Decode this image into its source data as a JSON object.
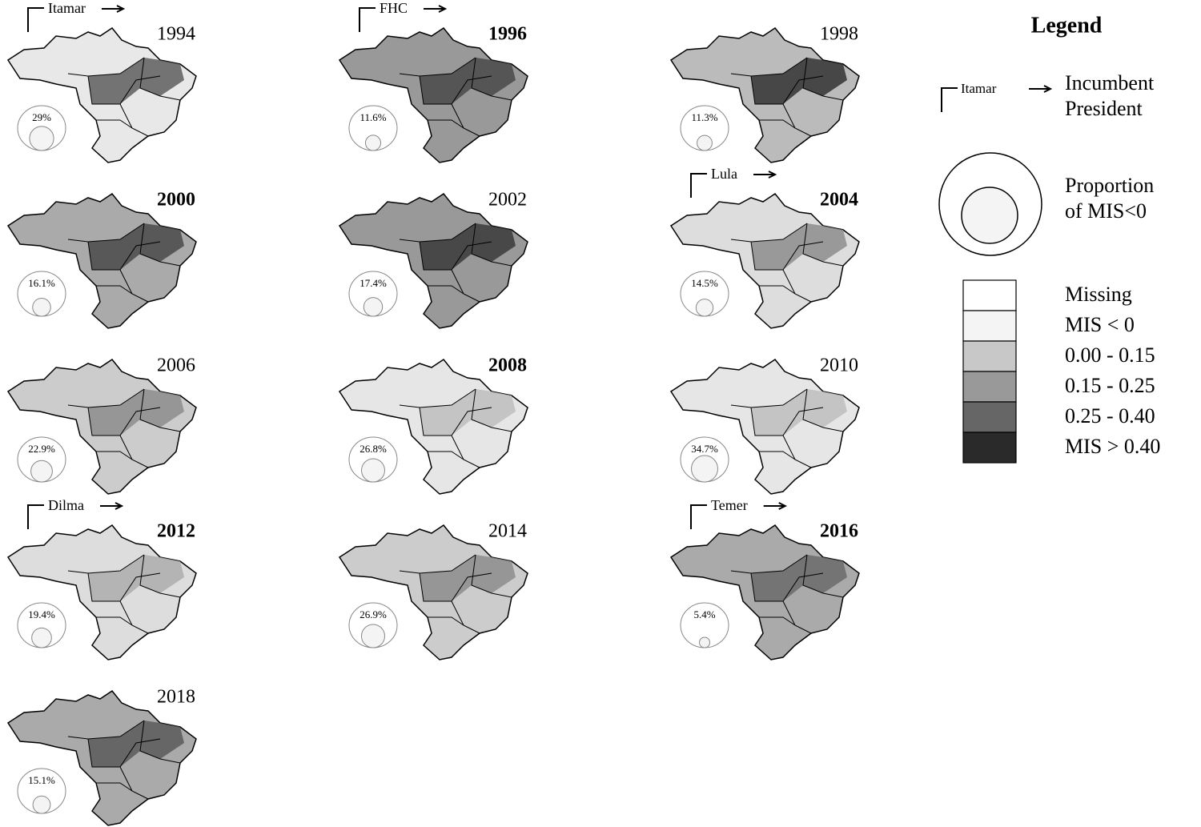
{
  "panels": [
    {
      "year": "1994",
      "bold": false,
      "president": "Itamar",
      "proportion": "29%"
    },
    {
      "year": "1996",
      "bold": true,
      "president": "FHC",
      "proportion": "11.6%"
    },
    {
      "year": "1998",
      "bold": false,
      "proportion": "11.3%"
    },
    {
      "year": "2000",
      "bold": true,
      "proportion": "16.1%"
    },
    {
      "year": "2002",
      "bold": false,
      "proportion": "17.4%"
    },
    {
      "year": "2004",
      "bold": true,
      "president": "Lula",
      "proportion": "14.5%"
    },
    {
      "year": "2006",
      "bold": false,
      "proportion": "22.9%"
    },
    {
      "year": "2008",
      "bold": true,
      "proportion": "26.8%"
    },
    {
      "year": "2010",
      "bold": false,
      "proportion": "34.7%"
    },
    {
      "year": "2012",
      "bold": true,
      "president": "Dilma",
      "proportion": "19.4%"
    },
    {
      "year": "2014",
      "bold": false,
      "proportion": "26.9%"
    },
    {
      "year": "2016",
      "bold": true,
      "president": "Temer",
      "proportion": "5.4%"
    },
    {
      "year": "2018",
      "bold": false,
      "proportion": "15.1%"
    }
  ],
  "legend": {
    "title": "Legend",
    "president_example": "Itamar",
    "president_label": [
      "Incumbent",
      "President"
    ],
    "proportion_label": [
      "Proportion",
      "of MIS<0"
    ],
    "classes": [
      "Missing",
      "MIS < 0",
      "0.00 - 0.15",
      "0.15 - 0.25",
      "0.25 - 0.40",
      "MIS > 0.40"
    ]
  }
}
